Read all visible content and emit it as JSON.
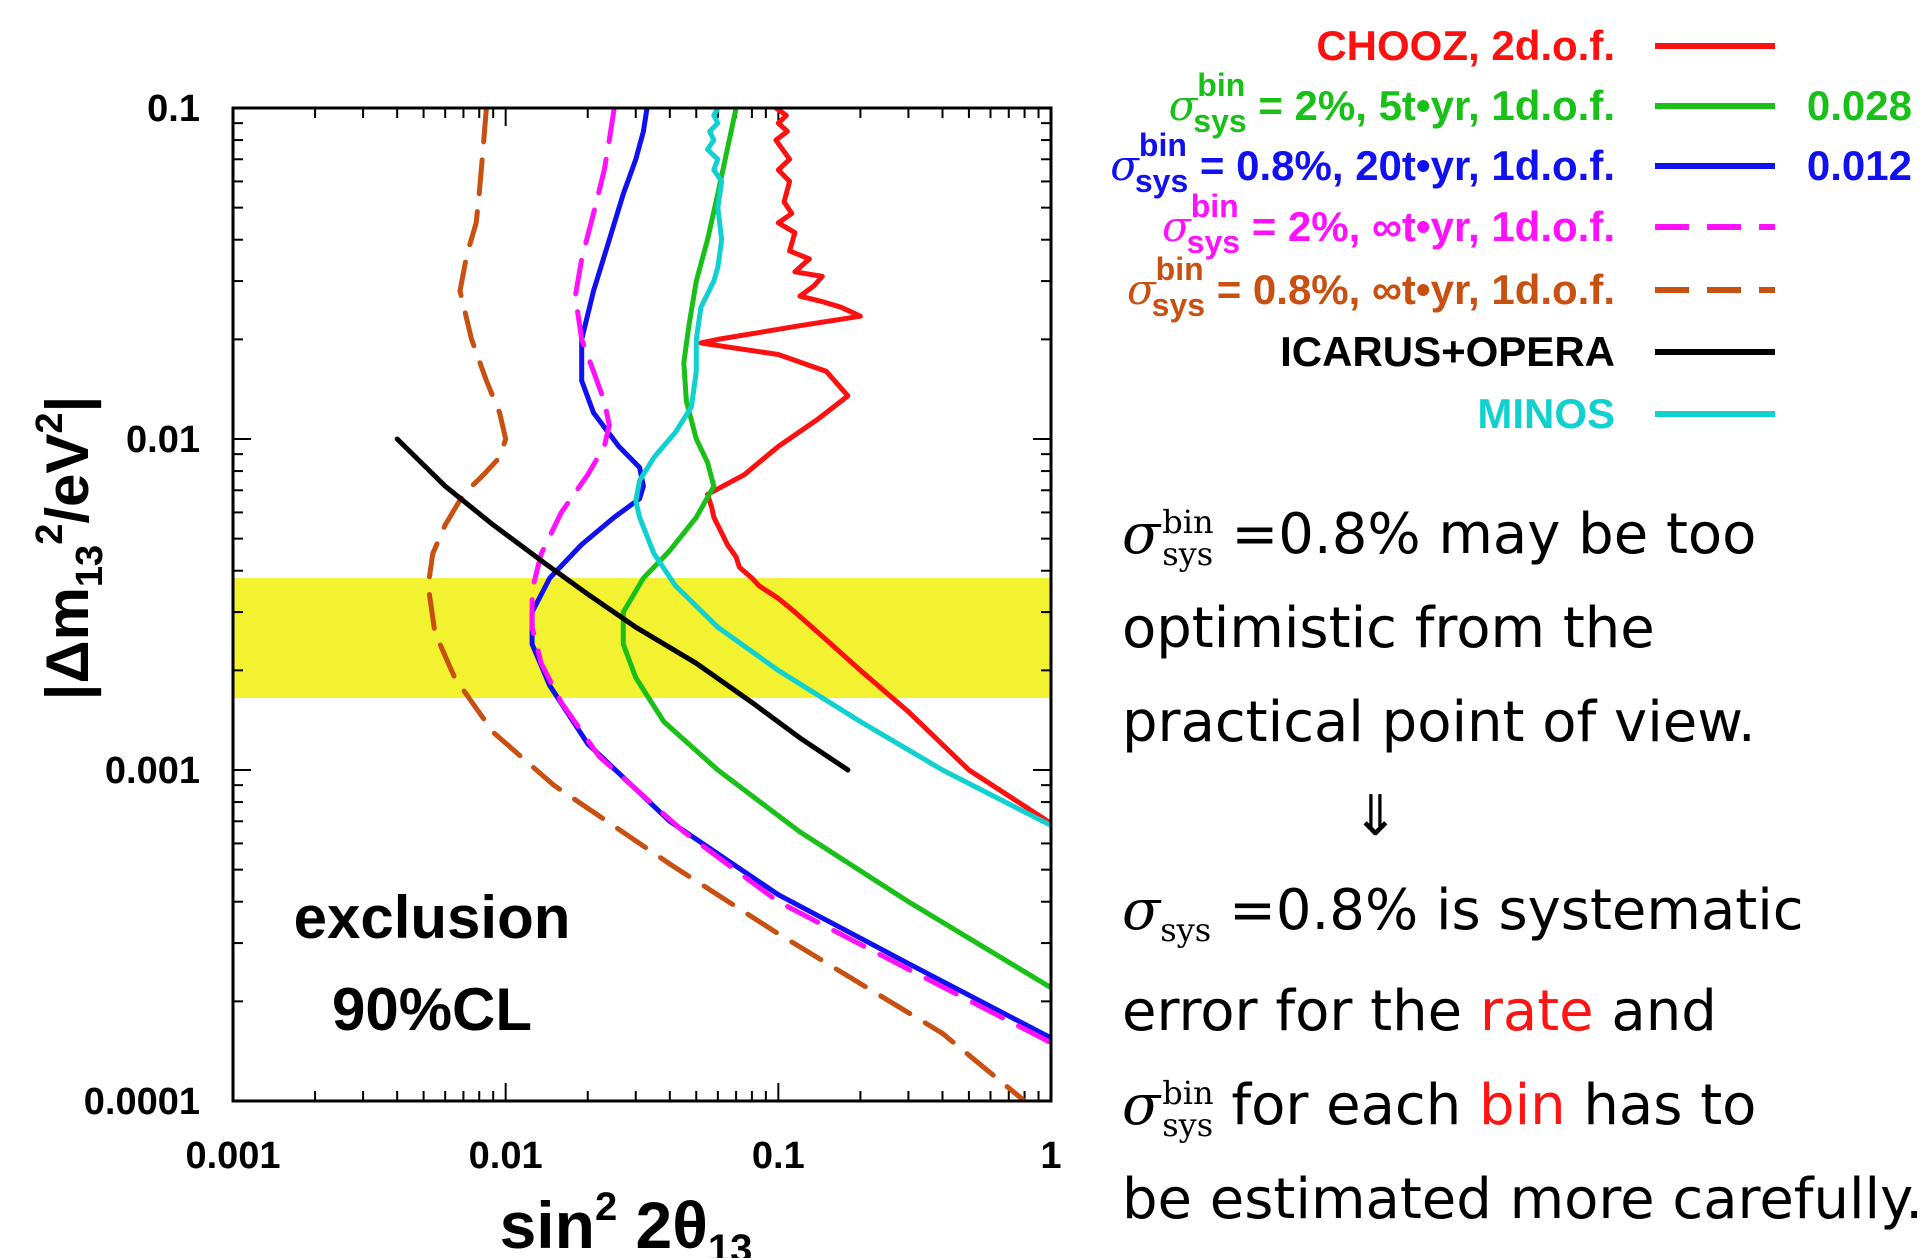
{
  "chart_data": {
    "type": "line",
    "x_scale": "log",
    "y_scale": "log",
    "xlim": [
      0.001,
      1
    ],
    "ylim": [
      0.0001,
      0.1
    ],
    "x_ticks": [
      "0.001",
      "0.01",
      "0.1",
      "1"
    ],
    "y_ticks": [
      "0.0001",
      "0.001",
      "0.01",
      "0.1"
    ],
    "xlabel": {
      "base": "sin",
      "sup": "2",
      "rest": " 2θ",
      "sub": "13"
    },
    "ylabel": {
      "pre": "|Δm",
      "sub": "13",
      "sup": "2",
      "post": "/eV",
      "sup2": "2",
      "close": "|"
    },
    "annotation": [
      "exclusion",
      "90%CL"
    ],
    "band": {
      "y_range": [
        0.00165,
        0.0038
      ],
      "color": "#f2f230"
    },
    "series": [
      {
        "name": "CHOOZ, 2d.o.f.",
        "color": "#ff1010",
        "dash": "solid",
        "value": "",
        "points": [
          [
            0.098,
            0.1
          ],
          [
            0.107,
            0.095
          ],
          [
            0.1,
            0.09
          ],
          [
            0.108,
            0.085
          ],
          [
            0.098,
            0.08
          ],
          [
            0.11,
            0.07
          ],
          [
            0.1,
            0.065
          ],
          [
            0.11,
            0.06
          ],
          [
            0.105,
            0.052
          ],
          [
            0.112,
            0.048
          ],
          [
            0.1,
            0.045
          ],
          [
            0.115,
            0.042
          ],
          [
            0.11,
            0.037
          ],
          [
            0.13,
            0.035
          ],
          [
            0.115,
            0.032
          ],
          [
            0.145,
            0.031
          ],
          [
            0.135,
            0.029
          ],
          [
            0.12,
            0.027
          ],
          [
            0.145,
            0.026
          ],
          [
            0.17,
            0.025
          ],
          [
            0.2,
            0.0235
          ],
          [
            0.12,
            0.022
          ],
          [
            0.06,
            0.02
          ],
          [
            0.052,
            0.0195
          ],
          [
            0.1,
            0.018
          ],
          [
            0.15,
            0.016
          ],
          [
            0.18,
            0.0135
          ],
          [
            0.14,
            0.0115
          ],
          [
            0.1,
            0.0095
          ],
          [
            0.075,
            0.0078
          ],
          [
            0.055,
            0.0068
          ],
          [
            0.057,
            0.0062
          ],
          [
            0.058,
            0.0058
          ],
          [
            0.062,
            0.0052
          ],
          [
            0.065,
            0.0048
          ],
          [
            0.07,
            0.0044
          ],
          [
            0.072,
            0.0041
          ],
          [
            0.08,
            0.0038
          ],
          [
            0.085,
            0.0036
          ],
          [
            0.1,
            0.0033
          ],
          [
            0.115,
            0.003
          ],
          [
            0.14,
            0.0026
          ],
          [
            0.2,
            0.002
          ],
          [
            0.3,
            0.0015
          ],
          [
            0.5,
            0.001
          ],
          [
            1,
            0.00069
          ]
        ]
      },
      {
        "name": "σ bin sys = 2%, 5t•yr, 1d.o.f.",
        "color": "#18c018",
        "dash": "solid",
        "value": "0.028",
        "points": [
          [
            0.07,
            0.1
          ],
          [
            0.065,
            0.075
          ],
          [
            0.06,
            0.055
          ],
          [
            0.055,
            0.04
          ],
          [
            0.05,
            0.03
          ],
          [
            0.047,
            0.022
          ],
          [
            0.045,
            0.017
          ],
          [
            0.046,
            0.013
          ],
          [
            0.05,
            0.01
          ],
          [
            0.055,
            0.0085
          ],
          [
            0.058,
            0.0072
          ],
          [
            0.05,
            0.0058
          ],
          [
            0.04,
            0.0046
          ],
          [
            0.032,
            0.0038
          ],
          [
            0.027,
            0.003
          ],
          [
            0.027,
            0.0024
          ],
          [
            0.03,
            0.0019
          ],
          [
            0.038,
            0.0014
          ],
          [
            0.06,
            0.001
          ],
          [
            0.12,
            0.00065
          ],
          [
            0.3,
            0.0004
          ],
          [
            1,
            0.00022
          ]
        ]
      },
      {
        "name": "σ bin sys = 0.8%, 20t•yr, 1d.o.f.",
        "color": "#1010f0",
        "dash": "solid",
        "value": "0.012",
        "points": [
          [
            0.033,
            0.1
          ],
          [
            0.032,
            0.085
          ],
          [
            0.03,
            0.07
          ],
          [
            0.027,
            0.055
          ],
          [
            0.024,
            0.04
          ],
          [
            0.021,
            0.028
          ],
          [
            0.019,
            0.02
          ],
          [
            0.019,
            0.015
          ],
          [
            0.021,
            0.012
          ],
          [
            0.026,
            0.0095
          ],
          [
            0.031,
            0.0082
          ],
          [
            0.032,
            0.0072
          ],
          [
            0.031,
            0.0066
          ],
          [
            0.025,
            0.0058
          ],
          [
            0.019,
            0.0048
          ],
          [
            0.0145,
            0.0038
          ],
          [
            0.0125,
            0.003
          ],
          [
            0.0125,
            0.0024
          ],
          [
            0.0145,
            0.0018
          ],
          [
            0.02,
            0.0012
          ],
          [
            0.04,
            0.0007
          ],
          [
            0.1,
            0.00042
          ],
          [
            0.3,
            0.00026
          ],
          [
            1,
            0.000155
          ]
        ]
      },
      {
        "name": "σ bin sys = 2%, ∞t•yr, 1d.o.f.",
        "color": "#ff10ff",
        "dash": "dashed",
        "value": "",
        "points": [
          [
            0.025,
            0.1
          ],
          [
            0.024,
            0.08
          ],
          [
            0.023,
            0.065
          ],
          [
            0.021,
            0.048
          ],
          [
            0.019,
            0.035
          ],
          [
            0.018,
            0.027
          ],
          [
            0.019,
            0.02
          ],
          [
            0.021,
            0.016
          ],
          [
            0.023,
            0.013
          ],
          [
            0.024,
            0.011
          ],
          [
            0.023,
            0.0095
          ],
          [
            0.02,
            0.0078
          ],
          [
            0.016,
            0.006
          ],
          [
            0.0135,
            0.0045
          ],
          [
            0.0125,
            0.0035
          ],
          [
            0.0125,
            0.0027
          ],
          [
            0.0135,
            0.0021
          ],
          [
            0.016,
            0.0016
          ],
          [
            0.022,
            0.0011
          ],
          [
            0.045,
            0.00065
          ],
          [
            0.1,
            0.0004
          ],
          [
            0.3,
            0.00025
          ],
          [
            1,
            0.00015
          ]
        ]
      },
      {
        "name": "σ bin sys = 0.8%, ∞t•yr, 1d.o.f.",
        "color": "#c85010",
        "dash": "dashed",
        "value": "",
        "points": [
          [
            0.0085,
            0.1
          ],
          [
            0.0082,
            0.07
          ],
          [
            0.008,
            0.055
          ],
          [
            0.0078,
            0.045
          ],
          [
            0.0072,
            0.036
          ],
          [
            0.0068,
            0.028
          ],
          [
            0.0075,
            0.02
          ],
          [
            0.0085,
            0.015
          ],
          [
            0.0095,
            0.012
          ],
          [
            0.01,
            0.01
          ],
          [
            0.0095,
            0.0088
          ],
          [
            0.0083,
            0.0078
          ],
          [
            0.007,
            0.0068
          ],
          [
            0.006,
            0.0055
          ],
          [
            0.0054,
            0.0045
          ],
          [
            0.0052,
            0.0036
          ],
          [
            0.0055,
            0.0026
          ],
          [
            0.0065,
            0.0019
          ],
          [
            0.009,
            0.0013
          ],
          [
            0.015,
            0.0009
          ],
          [
            0.04,
            0.00052
          ],
          [
            0.1,
            0.00032
          ],
          [
            0.4,
            0.00016
          ],
          [
            0.8,
            0.0001
          ]
        ]
      },
      {
        "name": "ICARUS+OPERA",
        "color": "#000000",
        "dash": "solid",
        "value": "",
        "points": [
          [
            0.004,
            0.01
          ],
          [
            0.006,
            0.0072
          ],
          [
            0.009,
            0.0055
          ],
          [
            0.014,
            0.0042
          ],
          [
            0.02,
            0.0034
          ],
          [
            0.03,
            0.0027
          ],
          [
            0.05,
            0.0021
          ],
          [
            0.08,
            0.0016
          ],
          [
            0.12,
            0.00125
          ],
          [
            0.18,
            0.001
          ]
        ]
      },
      {
        "name": "MINOS",
        "color": "#10d0d0",
        "dash": "solid",
        "value": "",
        "points": [
          [
            0.06,
            0.1
          ],
          [
            0.058,
            0.095
          ],
          [
            0.06,
            0.09
          ],
          [
            0.056,
            0.085
          ],
          [
            0.058,
            0.08
          ],
          [
            0.055,
            0.075
          ],
          [
            0.06,
            0.07
          ],
          [
            0.058,
            0.065
          ],
          [
            0.062,
            0.06
          ],
          [
            0.06,
            0.05
          ],
          [
            0.062,
            0.04
          ],
          [
            0.06,
            0.033
          ],
          [
            0.058,
            0.03
          ],
          [
            0.052,
            0.025
          ],
          [
            0.05,
            0.02
          ],
          [
            0.05,
            0.016
          ],
          [
            0.048,
            0.0125
          ],
          [
            0.042,
            0.0105
          ],
          [
            0.035,
            0.0088
          ],
          [
            0.031,
            0.0075
          ],
          [
            0.03,
            0.0065
          ],
          [
            0.031,
            0.0058
          ],
          [
            0.035,
            0.0045
          ],
          [
            0.042,
            0.0036
          ],
          [
            0.06,
            0.0027
          ],
          [
            0.1,
            0.002
          ],
          [
            0.2,
            0.0014
          ],
          [
            0.4,
            0.001
          ],
          [
            1,
            0.00068
          ]
        ]
      }
    ]
  },
  "legend": [
    {
      "label": "CHOOZ, 2d.o.f."
    },
    {
      "sigma": "σ",
      "sup": "bin",
      "sub": "sys",
      "label": " = 2%, 5t•yr, 1d.o.f."
    },
    {
      "sigma": "σ",
      "sup": "bin",
      "sub": "sys",
      "label": " = 0.8%, 20t•yr, 1d.o.f."
    },
    {
      "sigma": "σ",
      "sup": "bin",
      "sub": "sys",
      "label": " = 2%, ∞t•yr, 1d.o.f."
    },
    {
      "sigma": "σ",
      "sup": "bin",
      "sub": "sys",
      "label": " = 0.8%, ∞t•yr, 1d.o.f."
    },
    {
      "label": "ICARUS+OPERA"
    },
    {
      "label": "MINOS"
    }
  ],
  "notes": {
    "p1": {
      "sigma": "σ",
      "sup": "bin",
      "sub": "sys",
      "text": " =0.8% may be too"
    },
    "p2": "optimistic from the",
    "p3": "practical point of view.",
    "arrow": "⇓",
    "p4": {
      "sigma": "σ",
      "sub": "sys",
      "text": " =0.8% is systematic"
    },
    "p5": {
      "pre": "error for the ",
      "red": "rate",
      "post": " and"
    },
    "p6": {
      "sigma": "σ",
      "sup": "bin",
      "sub": "sys",
      "pre": " for each ",
      "red": "bin",
      "post": " has to"
    },
    "p7": "be estimated more carefully."
  }
}
